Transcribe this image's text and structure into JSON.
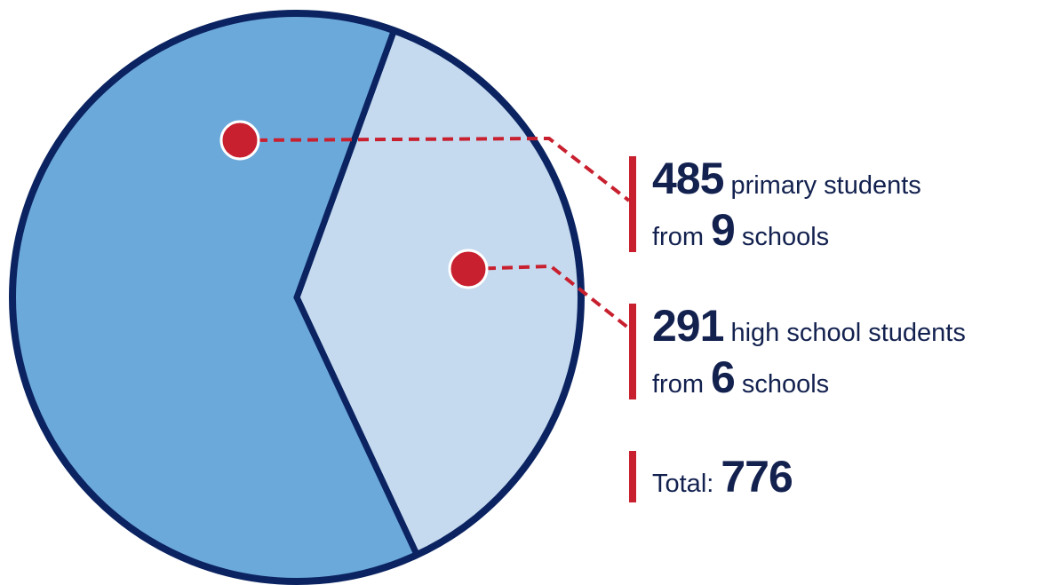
{
  "chart_data": {
    "type": "pie",
    "slices": [
      {
        "category": "primary students",
        "value": 485,
        "color": "#6ca9db",
        "schools": 9
      },
      {
        "category": "high school students",
        "value": 291,
        "color": "#c5daef",
        "schools": 6
      }
    ],
    "total": 776,
    "outline_color": "#0b2461",
    "callout_color": "#c8202f"
  },
  "legend": {
    "primary": {
      "value": "485",
      "label": "primary students",
      "from": "from",
      "schools_count": "9",
      "schools": "schools"
    },
    "high": {
      "value": "291",
      "label": "high school students",
      "from": "from",
      "schools_count": "6",
      "schools": "schools"
    },
    "total": {
      "label": "Total:",
      "value": "776"
    }
  }
}
